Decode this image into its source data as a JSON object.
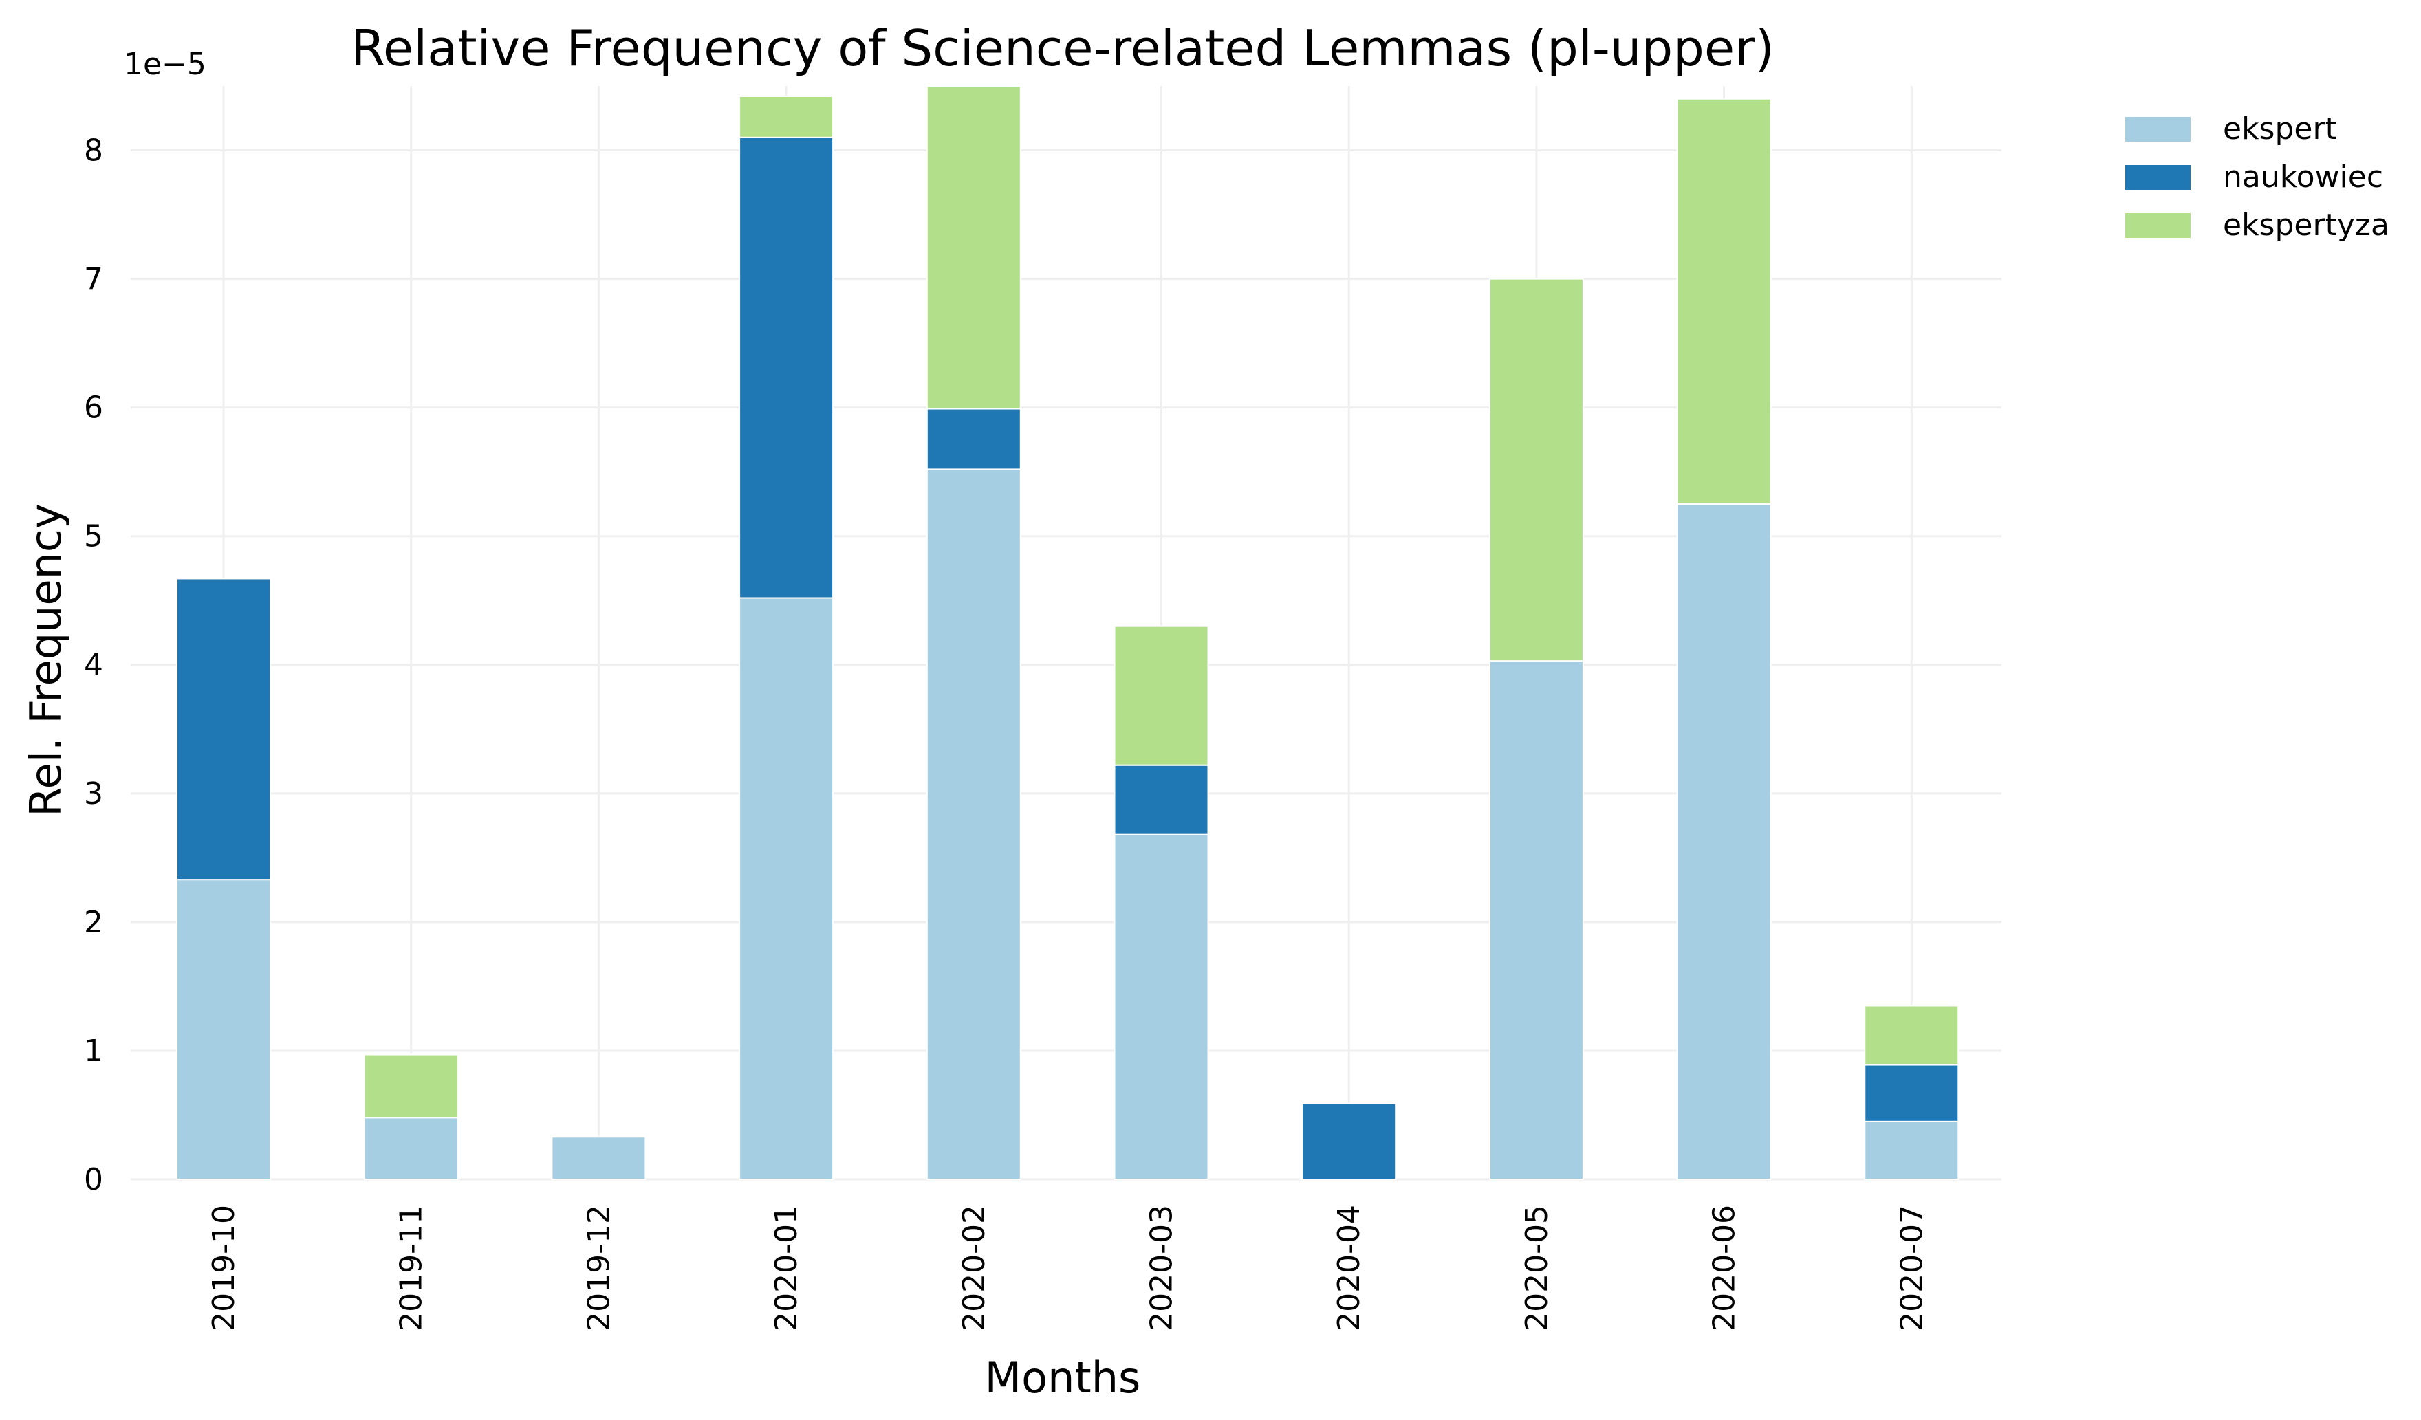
{
  "chart_data": {
    "type": "bar",
    "stacked": true,
    "title": "Relative Frequency of Science-related Lemmas (pl-upper)",
    "xlabel": "Months",
    "ylabel": "Rel. Frequency",
    "y_scale_label": "1e−5",
    "y_multiplier": 1e-05,
    "ylim": [
      0,
      8.5
    ],
    "yticks": [
      "0",
      "1",
      "2",
      "3",
      "4",
      "5",
      "6",
      "7",
      "8"
    ],
    "grid": true,
    "legend_position": "top-right outside",
    "categories": [
      "2019-10",
      "2019-11",
      "2019-12",
      "2020-01",
      "2020-02",
      "2020-03",
      "2020-04",
      "2020-05",
      "2020-06",
      "2020-07"
    ],
    "series": [
      {
        "name": "ekspert",
        "color": "#a6cee3",
        "values": [
          2.33,
          0.48,
          0.33,
          4.52,
          5.52,
          2.68,
          0.0,
          4.03,
          5.25,
          0.45
        ]
      },
      {
        "name": "naukowiec",
        "color": "#1f78b4",
        "values": [
          2.34,
          0.0,
          0.0,
          3.58,
          0.47,
          0.54,
          0.59,
          0.0,
          0.0,
          0.44
        ]
      },
      {
        "name": "ekspertyza",
        "color": "#b2df8a",
        "values": [
          0.0,
          0.49,
          0.0,
          0.32,
          2.51,
          1.08,
          0.0,
          2.97,
          3.15,
          0.46
        ]
      }
    ]
  }
}
